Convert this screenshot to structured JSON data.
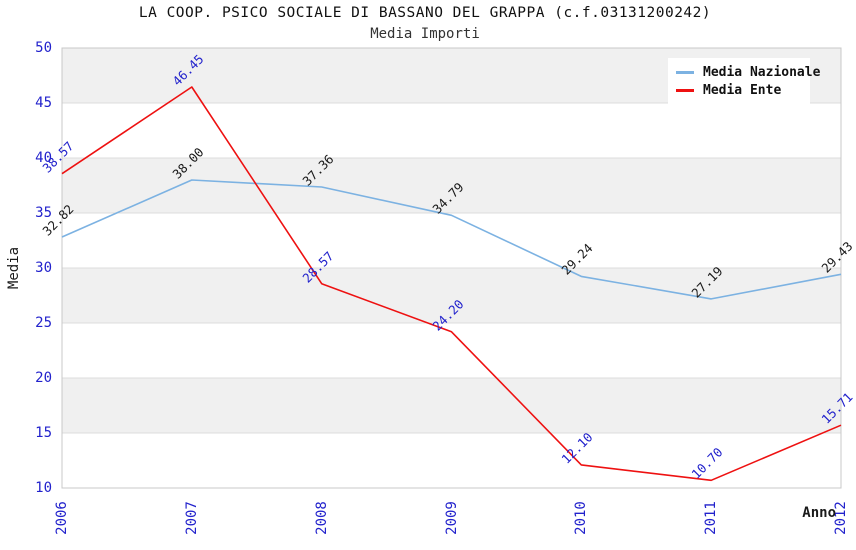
{
  "chart_data": {
    "type": "line",
    "title": "LA COOP. PSICO SOCIALE DI BASSANO DEL GRAPPA (c.f.03131200242)",
    "subtitle": "Media Importi",
    "xlabel": "Anno",
    "ylabel": "Media",
    "categories": [
      "2006",
      "2007",
      "2008",
      "2009",
      "2010",
      "2011",
      "2012"
    ],
    "series": [
      {
        "name": "Media Nazionale",
        "color": "#7CB2E2",
        "label_color": "#1A1A1A",
        "values": [
          32.82,
          38.0,
          37.36,
          34.79,
          29.24,
          27.19,
          29.43
        ]
      },
      {
        "name": "Media Ente",
        "color": "#EE1111",
        "label_color": "#2222CC",
        "values": [
          38.57,
          46.45,
          28.57,
          24.2,
          12.1,
          10.7,
          15.71
        ]
      }
    ],
    "ylim": [
      10,
      50
    ],
    "ytick_step": 5,
    "value_label_decimals": 2,
    "grid": "alternating-horizontal-bands",
    "legend_position": "top-right",
    "colors": {
      "tick_label": "#2222CC",
      "axis_title": "#1A1A1A",
      "band_gray": "#F0F0F0",
      "band_white": "#FFFFFF",
      "gridline": "#DCDCDC",
      "plot_border": "#C8C8C8",
      "background": "#FFFFFF"
    }
  }
}
